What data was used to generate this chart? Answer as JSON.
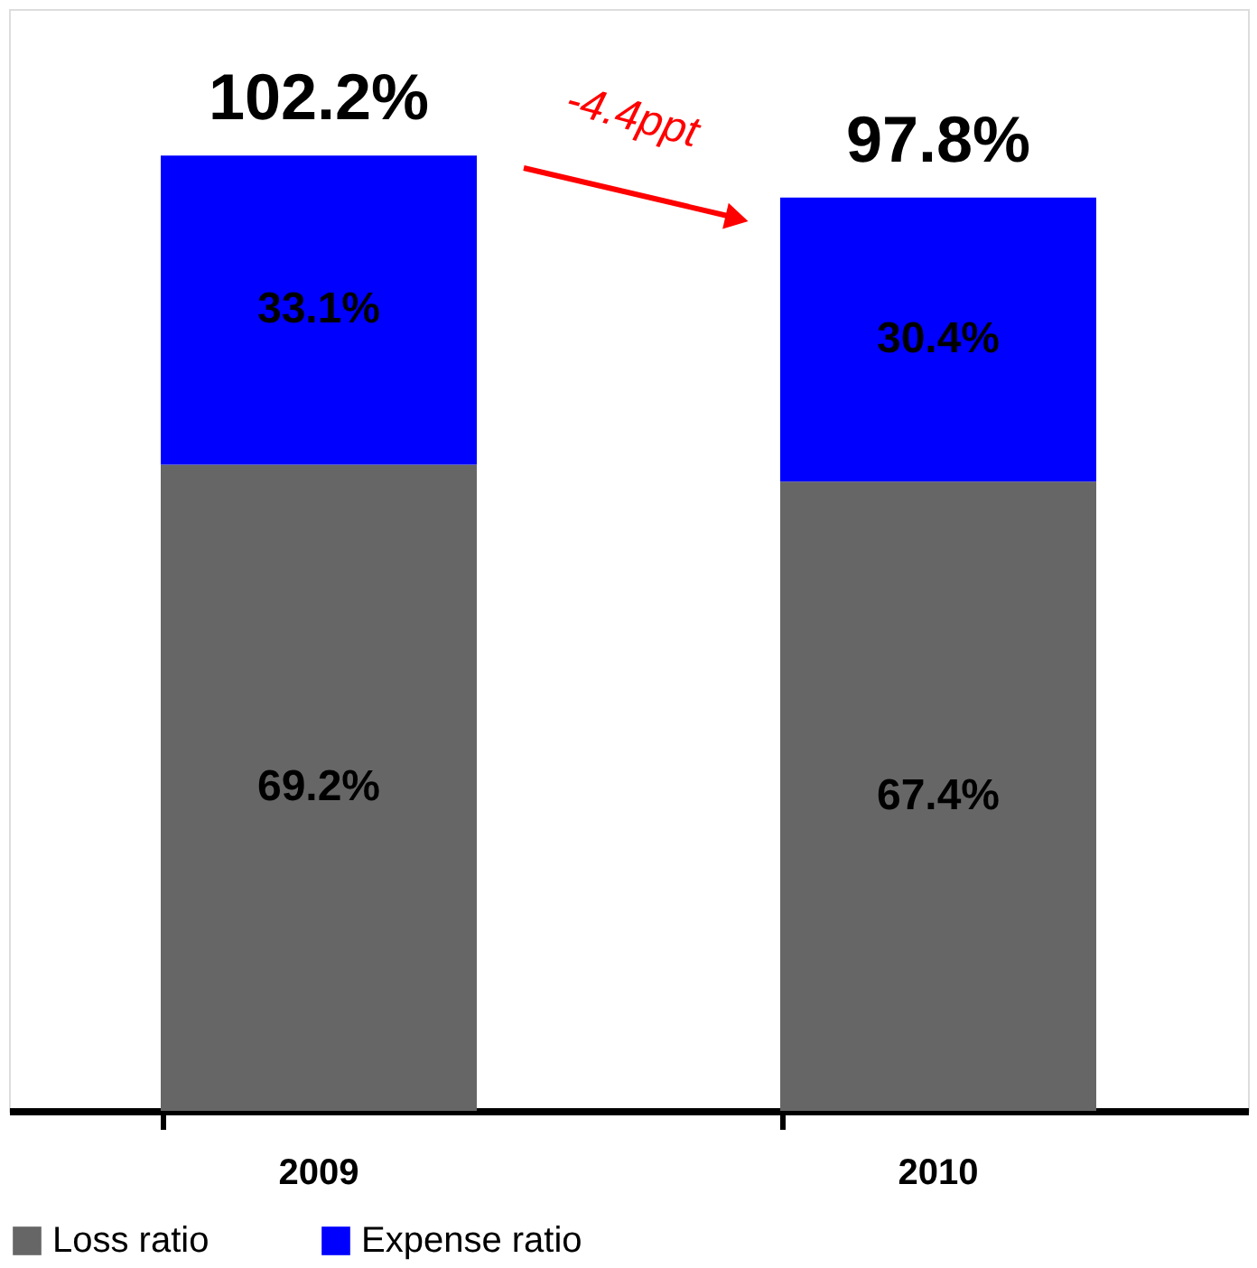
{
  "chart_data": {
    "type": "bar",
    "stacked": true,
    "categories": [
      "2009",
      "2010"
    ],
    "series": [
      {
        "name": "Loss ratio",
        "color": "#666666",
        "values": [
          69.2,
          67.4
        ],
        "value_labels": [
          "69.2%",
          "67.4%"
        ]
      },
      {
        "name": "Expense ratio",
        "color": "#0000ff",
        "values": [
          33.1,
          30.4
        ],
        "value_labels": [
          "33.1%",
          "30.4%"
        ]
      }
    ],
    "totals": [
      "102.2%",
      "97.8%"
    ],
    "annotations": [
      "-4.4ppt"
    ],
    "ylim": [
      0,
      118
    ],
    "tick_labels": "x",
    "grid": false,
    "legend": "bottom"
  }
}
